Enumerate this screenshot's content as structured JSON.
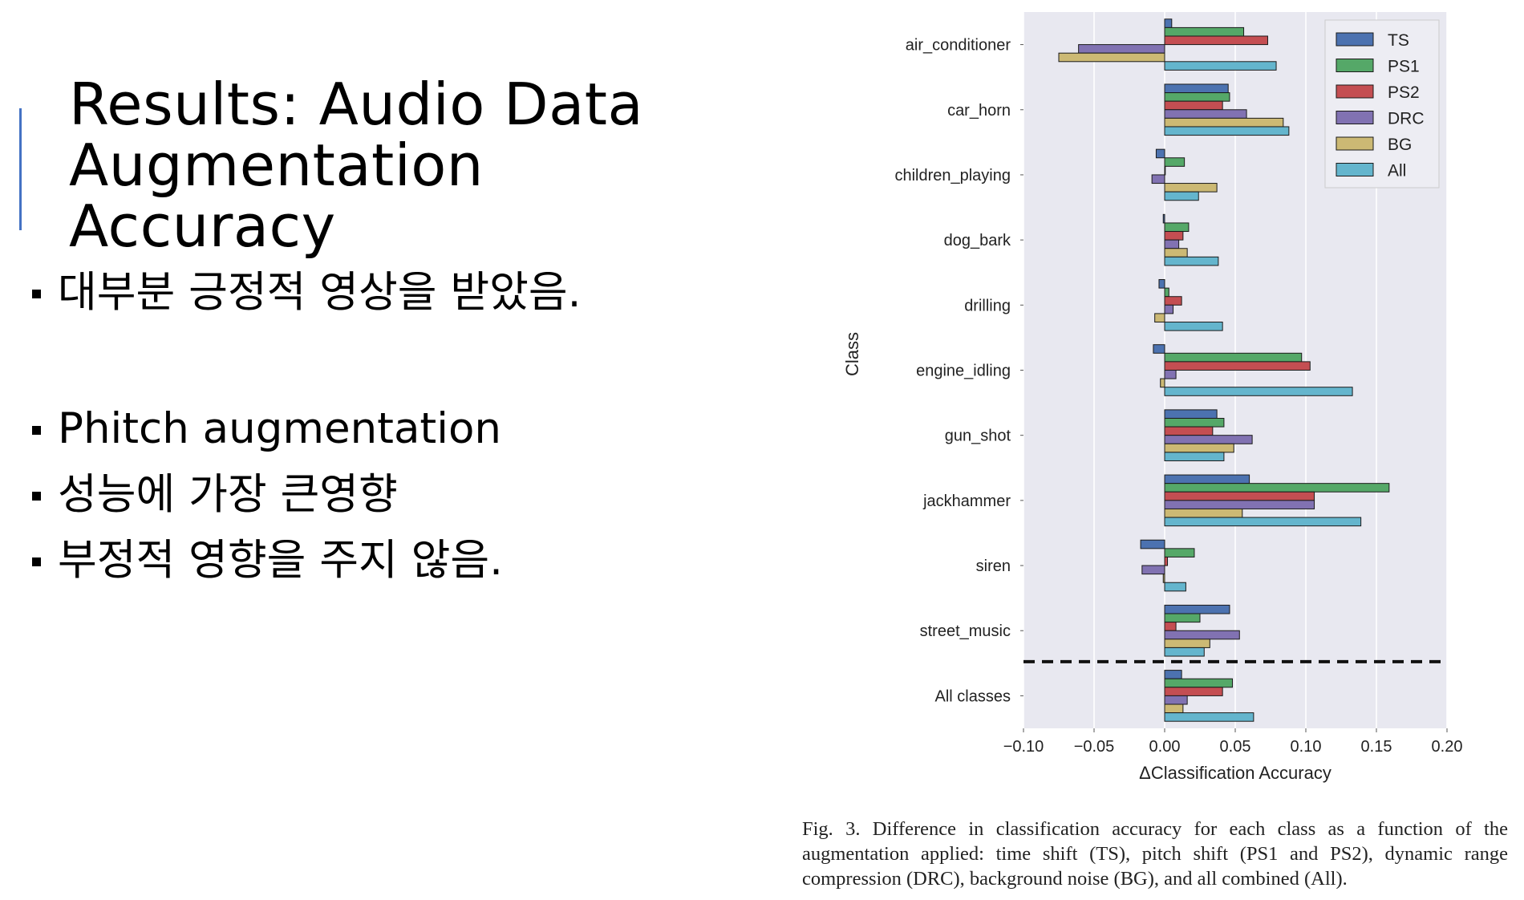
{
  "slide": {
    "title": "Results: Audio Data Augmentation Accuracy",
    "bullets": [
      "대부분 긍정적 영상을 받았음.",
      "Phitch augmentation",
      "성능에 가장 큰영향",
      "부정적 영향을 주지 않음."
    ]
  },
  "colors": {
    "plot_background": "#e8e8f0",
    "TS": "#4c72b0",
    "PS1": "#55a868",
    "PS2": "#c44e52",
    "DRC": "#8172b2",
    "BG": "#ccb974",
    "All": "#64b5cd",
    "accent": "#4472c4"
  },
  "chart_data": {
    "type": "bar",
    "orientation": "horizontal",
    "categories": [
      "air_conditioner",
      "car_horn",
      "children_playing",
      "dog_bark",
      "drilling",
      "engine_idling",
      "gun_shot",
      "jackhammer",
      "siren",
      "street_music",
      "All classes"
    ],
    "series": [
      {
        "name": "TS",
        "values": [
          0.005,
          0.045,
          -0.006,
          -0.001,
          -0.004,
          -0.008,
          0.037,
          0.06,
          -0.017,
          0.046,
          0.012
        ]
      },
      {
        "name": "PS1",
        "values": [
          0.056,
          0.046,
          0.014,
          0.017,
          0.003,
          0.097,
          0.042,
          0.159,
          0.021,
          0.025,
          0.048
        ]
      },
      {
        "name": "PS2",
        "values": [
          0.073,
          0.041,
          0.0,
          0.013,
          0.012,
          0.103,
          0.034,
          0.106,
          0.002,
          0.008,
          0.041
        ]
      },
      {
        "name": "DRC",
        "values": [
          -0.061,
          0.058,
          -0.009,
          0.01,
          0.006,
          0.008,
          0.062,
          0.106,
          -0.016,
          0.053,
          0.016
        ]
      },
      {
        "name": "BG",
        "values": [
          -0.075,
          0.084,
          0.037,
          0.016,
          -0.007,
          -0.003,
          0.049,
          0.055,
          -0.001,
          0.032,
          0.013
        ]
      },
      {
        "name": "All",
        "values": [
          0.079,
          0.088,
          0.024,
          0.038,
          0.041,
          0.133,
          0.042,
          0.139,
          0.015,
          0.028,
          0.063
        ]
      }
    ],
    "xlabel": "ΔClassification Accuracy",
    "ylabel": "Class",
    "xlim": [
      -0.1,
      0.2
    ],
    "xticks": [
      "−0.10",
      "−0.05",
      "0.00",
      "0.05",
      "0.10",
      "0.15",
      "0.20"
    ],
    "xtick_values": [
      -0.1,
      -0.05,
      0.0,
      0.05,
      0.1,
      0.15,
      0.2
    ],
    "grid": true,
    "legend_position": "top-right",
    "separator_before": "All classes",
    "caption": "Fig. 3.   Difference in classification accuracy for each class as a function of the augmentation applied: time shift (TS), pitch shift (PS1 and PS2), dynamic range compression (DRC), background noise (BG), and all combined (All)."
  }
}
